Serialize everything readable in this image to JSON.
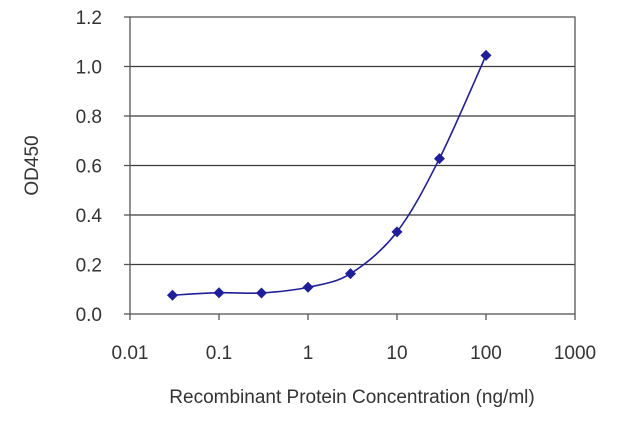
{
  "chart_data": {
    "type": "line",
    "title": "",
    "xlabel": "Recombinant Protein Concentration (ng/ml)",
    "ylabel": "OD450",
    "x_scale": "log",
    "xlim": [
      0.01,
      1000
    ],
    "ylim": [
      0,
      1.2
    ],
    "x_ticks": [
      "0.01",
      "0.1",
      "1",
      "10",
      "100",
      "1000"
    ],
    "y_ticks": [
      "0.0",
      "0.2",
      "0.4",
      "0.6",
      "0.8",
      "1.0",
      "1.2"
    ],
    "grid": "horizontal",
    "legend": "none",
    "series": [
      {
        "color": "#1f1f99",
        "marker": "diamond",
        "x": [
          0.03,
          0.1,
          0.3,
          1,
          3,
          10,
          30,
          100
        ],
        "y": [
          0.076,
          0.086,
          0.085,
          0.108,
          0.163,
          0.332,
          0.628,
          1.045
        ]
      }
    ],
    "colors": {
      "plot_border": "#555555",
      "gridline": "#3a3a3a",
      "text": "#333333"
    }
  }
}
